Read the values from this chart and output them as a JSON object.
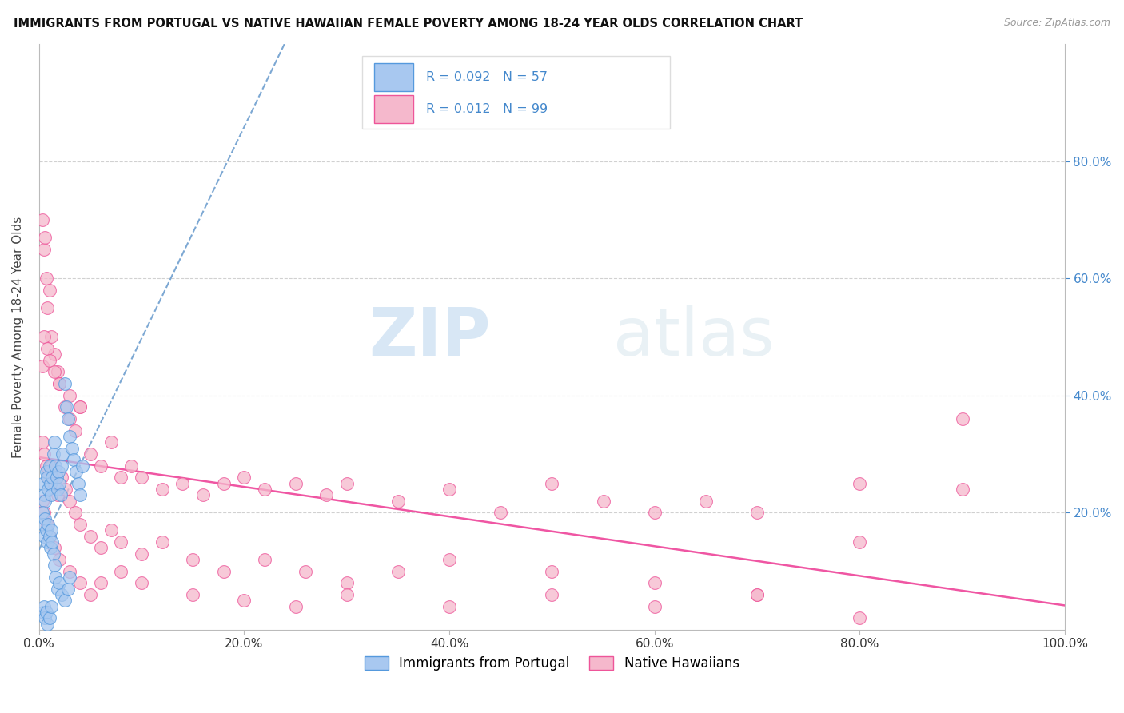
{
  "title": "IMMIGRANTS FROM PORTUGAL VS NATIVE HAWAIIAN FEMALE POVERTY AMONG 18-24 YEAR OLDS CORRELATION CHART",
  "source": "Source: ZipAtlas.com",
  "ylabel": "Female Poverty Among 18-24 Year Olds",
  "xlim": [
    0,
    1.0
  ],
  "ylim": [
    0,
    1.0
  ],
  "xtick_labels": [
    "0.0%",
    "20.0%",
    "40.0%",
    "60.0%",
    "80.0%",
    "100.0%"
  ],
  "xtick_values": [
    0.0,
    0.2,
    0.4,
    0.6,
    0.8,
    1.0
  ],
  "ytick_values": [
    0.2,
    0.4,
    0.6,
    0.8
  ],
  "ytick_labels_right": [
    "20.0%",
    "40.0%",
    "60.0%",
    "80.0%"
  ],
  "legend_r1": "0.092",
  "legend_n1": "57",
  "legend_r2": "0.012",
  "legend_n2": "99",
  "color_blue_fill": "#a8c8f0",
  "color_blue_edge": "#5599dd",
  "color_pink_fill": "#f5b8cc",
  "color_pink_edge": "#ee5599",
  "color_blue_text": "#4488cc",
  "color_pink_text": "#ee4499",
  "color_trend_blue": "#6699cc",
  "color_trend_pink": "#ee4499",
  "watermark_zip": "ZIP",
  "watermark_atlas": "atlas",
  "legend_label1": "Immigrants from Portugal",
  "legend_label2": "Native Hawaiians",
  "blue_x": [
    0.003,
    0.005,
    0.006,
    0.007,
    0.008,
    0.009,
    0.01,
    0.011,
    0.012,
    0.013,
    0.014,
    0.015,
    0.016,
    0.017,
    0.018,
    0.019,
    0.02,
    0.021,
    0.022,
    0.023,
    0.025,
    0.027,
    0.028,
    0.03,
    0.032,
    0.034,
    0.036,
    0.038,
    0.04,
    0.042,
    0.003,
    0.004,
    0.005,
    0.006,
    0.007,
    0.008,
    0.009,
    0.01,
    0.011,
    0.012,
    0.013,
    0.014,
    0.015,
    0.016,
    0.018,
    0.02,
    0.022,
    0.025,
    0.028,
    0.03,
    0.004,
    0.005,
    0.006,
    0.007,
    0.008,
    0.01,
    0.012
  ],
  "blue_y": [
    0.25,
    0.23,
    0.22,
    0.27,
    0.26,
    0.24,
    0.28,
    0.25,
    0.23,
    0.26,
    0.3,
    0.32,
    0.28,
    0.26,
    0.24,
    0.27,
    0.25,
    0.23,
    0.28,
    0.3,
    0.42,
    0.38,
    0.36,
    0.33,
    0.31,
    0.29,
    0.27,
    0.25,
    0.23,
    0.28,
    0.2,
    0.18,
    0.16,
    0.19,
    0.17,
    0.15,
    0.18,
    0.16,
    0.14,
    0.17,
    0.15,
    0.13,
    0.11,
    0.09,
    0.07,
    0.08,
    0.06,
    0.05,
    0.07,
    0.09,
    0.03,
    0.04,
    0.02,
    0.03,
    0.01,
    0.02,
    0.04
  ],
  "pink_x": [
    0.003,
    0.005,
    0.006,
    0.007,
    0.008,
    0.01,
    0.012,
    0.015,
    0.018,
    0.02,
    0.025,
    0.03,
    0.035,
    0.04,
    0.05,
    0.06,
    0.07,
    0.08,
    0.09,
    0.1,
    0.12,
    0.14,
    0.16,
    0.18,
    0.2,
    0.22,
    0.25,
    0.28,
    0.3,
    0.35,
    0.4,
    0.45,
    0.5,
    0.55,
    0.6,
    0.65,
    0.7,
    0.8,
    0.9,
    0.003,
    0.005,
    0.007,
    0.009,
    0.012,
    0.015,
    0.018,
    0.022,
    0.026,
    0.03,
    0.035,
    0.04,
    0.05,
    0.06,
    0.07,
    0.08,
    0.1,
    0.12,
    0.15,
    0.18,
    0.22,
    0.26,
    0.3,
    0.35,
    0.4,
    0.5,
    0.6,
    0.7,
    0.8,
    0.9,
    0.003,
    0.005,
    0.008,
    0.01,
    0.015,
    0.02,
    0.03,
    0.04,
    0.05,
    0.06,
    0.08,
    0.1,
    0.15,
    0.2,
    0.25,
    0.3,
    0.4,
    0.5,
    0.6,
    0.7,
    0.8,
    0.003,
    0.005,
    0.008,
    0.01,
    0.015,
    0.02,
    0.03,
    0.04
  ],
  "pink_y": [
    0.7,
    0.65,
    0.67,
    0.6,
    0.55,
    0.58,
    0.5,
    0.47,
    0.44,
    0.42,
    0.38,
    0.36,
    0.34,
    0.38,
    0.3,
    0.28,
    0.32,
    0.26,
    0.28,
    0.26,
    0.24,
    0.25,
    0.23,
    0.25,
    0.26,
    0.24,
    0.25,
    0.23,
    0.25,
    0.22,
    0.24,
    0.2,
    0.25,
    0.22,
    0.2,
    0.22,
    0.2,
    0.25,
    0.36,
    0.32,
    0.3,
    0.28,
    0.26,
    0.28,
    0.25,
    0.23,
    0.26,
    0.24,
    0.22,
    0.2,
    0.18,
    0.16,
    0.14,
    0.17,
    0.15,
    0.13,
    0.15,
    0.12,
    0.1,
    0.12,
    0.1,
    0.08,
    0.1,
    0.12,
    0.1,
    0.08,
    0.06,
    0.15,
    0.24,
    0.22,
    0.2,
    0.18,
    0.16,
    0.14,
    0.12,
    0.1,
    0.08,
    0.06,
    0.08,
    0.1,
    0.08,
    0.06,
    0.05,
    0.04,
    0.06,
    0.04,
    0.06,
    0.04,
    0.06,
    0.02,
    0.45,
    0.5,
    0.48,
    0.46,
    0.44,
    0.42,
    0.4,
    0.38
  ]
}
